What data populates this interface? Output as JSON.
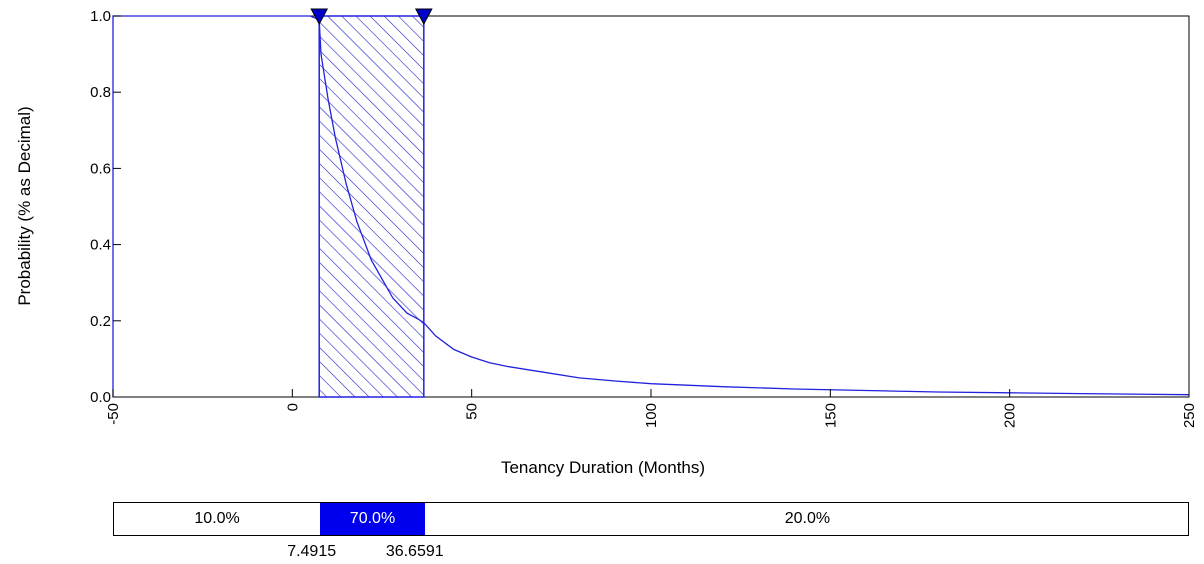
{
  "chart_data": {
    "type": "line",
    "xlabel": "Tenancy Duration (Months)",
    "ylabel": "Probability (% as Decimal)",
    "xlim": [
      -50,
      250
    ],
    "ylim": [
      0,
      1.0
    ],
    "x_ticks": [
      "-50",
      "0",
      "50",
      "100",
      "150",
      "200",
      "250"
    ],
    "y_ticks": [
      "0.0",
      "0.2",
      "0.4",
      "0.6",
      "0.8",
      "1.0"
    ],
    "series": [
      {
        "x": [
          7.49,
          8,
          10,
          12,
          15,
          18,
          20,
          22,
          25,
          28,
          30,
          32,
          35,
          36.66,
          40,
          45,
          50,
          55,
          60,
          70,
          80,
          90,
          100,
          120,
          140,
          160,
          180,
          200,
          220,
          250
        ],
        "y": [
          0.99,
          0.9,
          0.78,
          0.68,
          0.56,
          0.46,
          0.41,
          0.36,
          0.31,
          0.26,
          0.24,
          0.22,
          0.205,
          0.195,
          0.16,
          0.125,
          0.105,
          0.09,
          0.08,
          0.065,
          0.05,
          0.042,
          0.035,
          0.027,
          0.021,
          0.017,
          0.013,
          0.011,
          0.009,
          0.006
        ]
      }
    ],
    "shaded_region": {
      "x_start": 7.4915,
      "x_end": 36.6591
    },
    "probability_bar": {
      "left_pct": "10.0%",
      "mid_pct": "70.0%",
      "right_pct": "20.0%",
      "left_value": 0.1,
      "mid_value": 0.7,
      "right_value": 0.2,
      "lower_cut": "7.4915",
      "upper_cut": "36.6591"
    },
    "colors": {
      "line": "#2222dd",
      "hatch": "#2222cc",
      "mid_fill": "#0000ee",
      "axis": "#000000"
    },
    "grid": false
  }
}
